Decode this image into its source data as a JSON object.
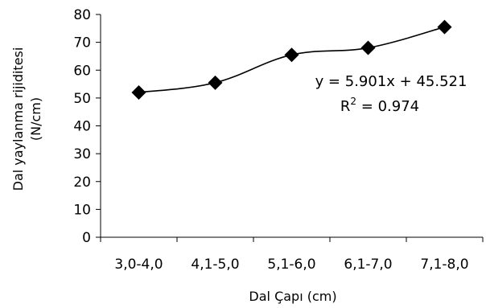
{
  "chart_data": {
    "type": "line",
    "categories": [
      "3,0-4,0",
      "4,1-5,0",
      "5,1-6,0",
      "6,1-7,0",
      "7,1-8,0"
    ],
    "series": [
      {
        "values": [
          52,
          55.5,
          65.5,
          68,
          75.5
        ]
      }
    ],
    "ylim": [
      0,
      80
    ],
    "yticks": [
      "0",
      "10",
      "20",
      "30",
      "40",
      "50",
      "60",
      "70",
      "80"
    ],
    "xlabel": "Dal Çapı (cm)",
    "ylabel_line1": "Dal yaylanma rijiditesi",
    "ylabel_line2": "(N/cm)",
    "grid": false,
    "marker": "diamond",
    "line_color": "#000000",
    "marker_color": "#000000",
    "annotation": {
      "equation": "y = 5.901x + 45.521",
      "r2_prefix": "R",
      "r2_sup": "2",
      "r2_value": " = 0.974"
    }
  }
}
